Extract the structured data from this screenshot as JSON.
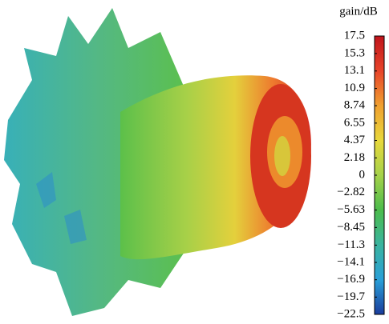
{
  "chart_data": {
    "type": "colorbar",
    "colorbar_label": "gain/dB",
    "clim": [
      -22.5,
      17.5
    ],
    "cticks": [
      17.5,
      15.3,
      13.1,
      10.9,
      8.74,
      6.55,
      4.37,
      2.18,
      0,
      {
        "value": -2.82,
        "label": "−2.82"
      },
      {
        "value": -5.63,
        "label": "−5.63"
      },
      {
        "value": -8.45,
        "label": "−8.45"
      },
      {
        "value": -11.3,
        "label": "−11.3"
      },
      {
        "value": -14.1,
        "label": "−14.1"
      },
      {
        "value": -16.9,
        "label": "−16.9"
      },
      {
        "value": -19.7,
        "label": "−19.7"
      },
      {
        "value": -22.5,
        "label": "−22.5"
      }
    ],
    "colormap": [
      "#c0141b",
      "#e8442a",
      "#f0a030",
      "#e8d83c",
      "#a6d24a",
      "#4cbc4c",
      "#3ab4a0",
      "#2aa0d8",
      "#1a3c9c"
    ]
  }
}
